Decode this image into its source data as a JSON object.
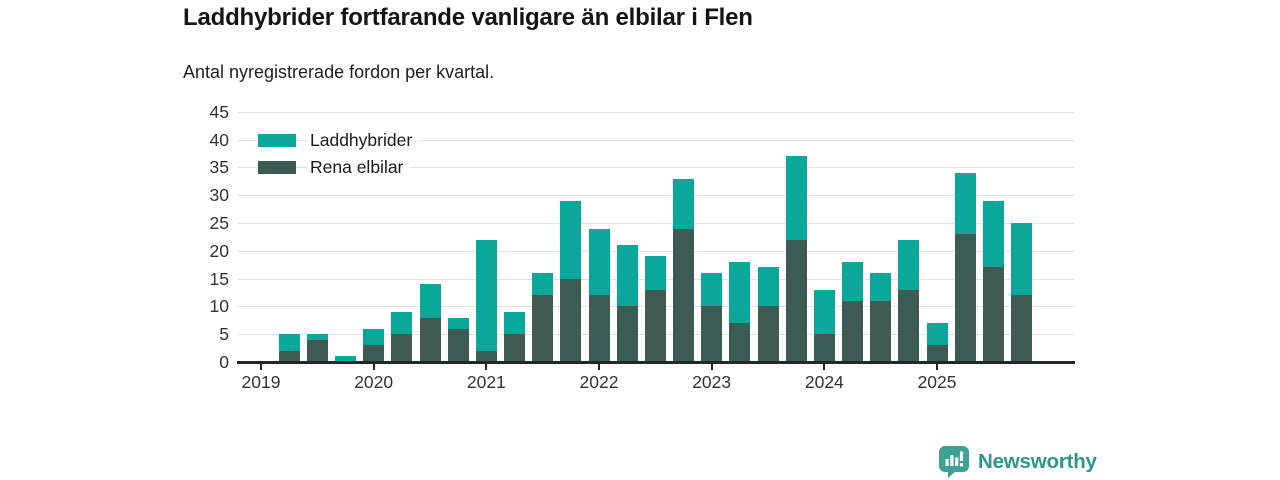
{
  "header": {},
  "chart_data": {
    "type": "bar",
    "stacked": true,
    "title": "Laddhybrider fortfarande vanligare än elbilar i Flen",
    "subtitle": "Antal nyregistrerade fordon per kvartal.",
    "xlabel": "",
    "ylabel": "",
    "ylim": [
      0,
      45
    ],
    "y_ticks": [
      0,
      5,
      10,
      15,
      20,
      25,
      30,
      35,
      40,
      45
    ],
    "grid": true,
    "legend_position": "top-left",
    "categories": [
      "2019 Q1",
      "2019 Q2",
      "2019 Q3",
      "2019 Q4",
      "2020 Q1",
      "2020 Q2",
      "2020 Q3",
      "2020 Q4",
      "2021 Q1",
      "2021 Q2",
      "2021 Q3",
      "2021 Q4",
      "2022 Q1",
      "2022 Q2",
      "2022 Q3",
      "2022 Q4",
      "2023 Q1",
      "2023 Q2",
      "2023 Q3",
      "2023 Q4",
      "2024 Q1",
      "2024 Q2",
      "2024 Q3",
      "2024 Q4",
      "2025 Q1",
      "2025 Q2",
      "2025 Q3",
      "2025 Q4"
    ],
    "x_tick_labels": [
      "2019",
      "2020",
      "2021",
      "2022",
      "2023",
      "2024",
      "2025"
    ],
    "series": [
      {
        "name": "Laddhybrider",
        "color": "#0aa79a",
        "values": [
          0,
          3,
          1,
          1,
          3,
          4,
          6,
          2,
          20,
          4,
          4,
          14,
          12,
          11,
          6,
          9,
          6,
          11,
          7,
          15,
          8,
          7,
          5,
          9,
          4,
          11,
          12,
          13
        ]
      },
      {
        "name": "Rena elbilar",
        "color": "#3e5b53",
        "values": [
          0,
          2,
          4,
          0,
          3,
          5,
          8,
          6,
          2,
          5,
          12,
          15,
          12,
          10,
          13,
          24,
          10,
          7,
          10,
          22,
          5,
          11,
          11,
          13,
          3,
          23,
          17,
          12
        ]
      }
    ],
    "stack_order_bottom_to_top": [
      "Rena elbilar",
      "Laddhybrider"
    ],
    "totals": [
      0,
      5,
      5,
      1,
      6,
      9,
      14,
      8,
      22,
      9,
      16,
      29,
      24,
      21,
      19,
      33,
      16,
      18,
      17,
      37,
      13,
      18,
      16,
      22,
      7,
      34,
      29,
      25
    ]
  },
  "footer": {
    "brand": "Newsworthy",
    "brand_color": "#2f968c",
    "brand_icon": "bar-chart-speech-bubble-icon"
  }
}
